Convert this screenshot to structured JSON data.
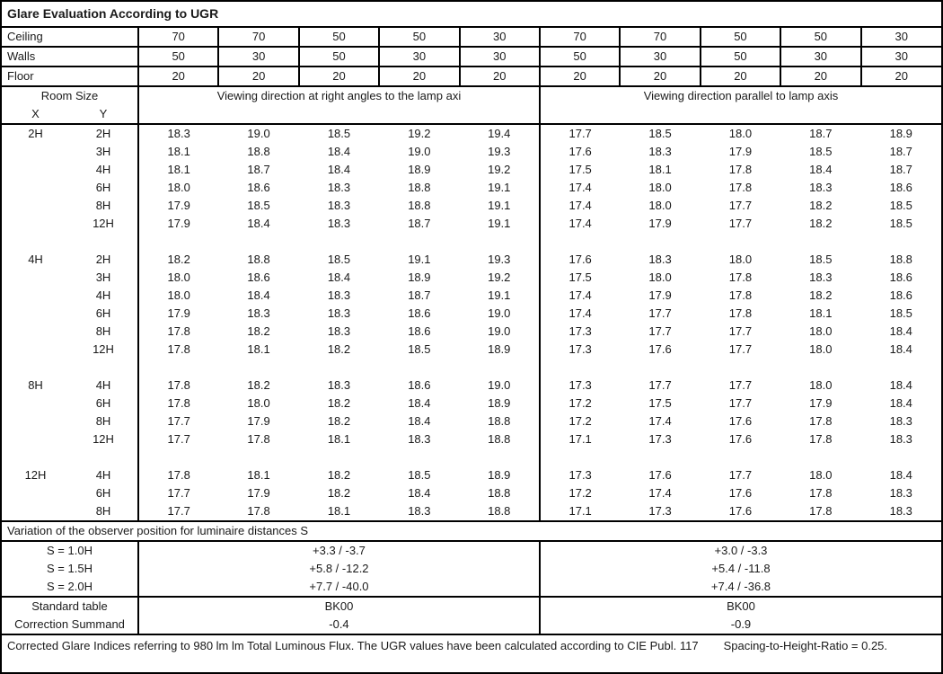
{
  "title": "Glare Evaluation According to UGR",
  "reflectances": {
    "rows": [
      {
        "label": "Ceiling",
        "values": [
          "70",
          "70",
          "50",
          "50",
          "30",
          "70",
          "70",
          "50",
          "50",
          "30"
        ]
      },
      {
        "label": "Walls",
        "values": [
          "50",
          "30",
          "50",
          "30",
          "30",
          "50",
          "30",
          "50",
          "30",
          "30"
        ]
      },
      {
        "label": "Floor",
        "values": [
          "20",
          "20",
          "20",
          "20",
          "20",
          "20",
          "20",
          "20",
          "20",
          "20"
        ]
      }
    ]
  },
  "header": {
    "room_size": "Room Size",
    "x": "X",
    "y": "Y",
    "left_section": "Viewing direction at right angles to the lamp axi",
    "right_section": "Viewing direction parallel to lamp axis"
  },
  "ugr_groups": [
    {
      "x": "2H",
      "rows": [
        {
          "y": "2H",
          "values": [
            "18.3",
            "19.0",
            "18.5",
            "19.2",
            "19.4",
            "17.7",
            "18.5",
            "18.0",
            "18.7",
            "18.9"
          ]
        },
        {
          "y": "3H",
          "values": [
            "18.1",
            "18.8",
            "18.4",
            "19.0",
            "19.3",
            "17.6",
            "18.3",
            "17.9",
            "18.5",
            "18.7"
          ]
        },
        {
          "y": "4H",
          "values": [
            "18.1",
            "18.7",
            "18.4",
            "18.9",
            "19.2",
            "17.5",
            "18.1",
            "17.8",
            "18.4",
            "18.7"
          ]
        },
        {
          "y": "6H",
          "values": [
            "18.0",
            "18.6",
            "18.3",
            "18.8",
            "19.1",
            "17.4",
            "18.0",
            "17.8",
            "18.3",
            "18.6"
          ]
        },
        {
          "y": "8H",
          "values": [
            "17.9",
            "18.5",
            "18.3",
            "18.8",
            "19.1",
            "17.4",
            "18.0",
            "17.7",
            "18.2",
            "18.5"
          ]
        },
        {
          "y": "12H",
          "values": [
            "17.9",
            "18.4",
            "18.3",
            "18.7",
            "19.1",
            "17.4",
            "17.9",
            "17.7",
            "18.2",
            "18.5"
          ]
        }
      ]
    },
    {
      "x": "4H",
      "rows": [
        {
          "y": "2H",
          "values": [
            "18.2",
            "18.8",
            "18.5",
            "19.1",
            "19.3",
            "17.6",
            "18.3",
            "18.0",
            "18.5",
            "18.8"
          ]
        },
        {
          "y": "3H",
          "values": [
            "18.0",
            "18.6",
            "18.4",
            "18.9",
            "19.2",
            "17.5",
            "18.0",
            "17.8",
            "18.3",
            "18.6"
          ]
        },
        {
          "y": "4H",
          "values": [
            "18.0",
            "18.4",
            "18.3",
            "18.7",
            "19.1",
            "17.4",
            "17.9",
            "17.8",
            "18.2",
            "18.6"
          ]
        },
        {
          "y": "6H",
          "values": [
            "17.9",
            "18.3",
            "18.3",
            "18.6",
            "19.0",
            "17.4",
            "17.7",
            "17.8",
            "18.1",
            "18.5"
          ]
        },
        {
          "y": "8H",
          "values": [
            "17.8",
            "18.2",
            "18.3",
            "18.6",
            "19.0",
            "17.3",
            "17.7",
            "17.7",
            "18.0",
            "18.4"
          ]
        },
        {
          "y": "12H",
          "values": [
            "17.8",
            "18.1",
            "18.2",
            "18.5",
            "18.9",
            "17.3",
            "17.6",
            "17.7",
            "18.0",
            "18.4"
          ]
        }
      ]
    },
    {
      "x": "8H",
      "rows": [
        {
          "y": "4H",
          "values": [
            "17.8",
            "18.2",
            "18.3",
            "18.6",
            "19.0",
            "17.3",
            "17.7",
            "17.7",
            "18.0",
            "18.4"
          ]
        },
        {
          "y": "6H",
          "values": [
            "17.8",
            "18.0",
            "18.2",
            "18.4",
            "18.9",
            "17.2",
            "17.5",
            "17.7",
            "17.9",
            "18.4"
          ]
        },
        {
          "y": "8H",
          "values": [
            "17.7",
            "17.9",
            "18.2",
            "18.4",
            "18.8",
            "17.2",
            "17.4",
            "17.6",
            "17.8",
            "18.3"
          ]
        },
        {
          "y": "12H",
          "values": [
            "17.7",
            "17.8",
            "18.1",
            "18.3",
            "18.8",
            "17.1",
            "17.3",
            "17.6",
            "17.8",
            "18.3"
          ]
        }
      ]
    },
    {
      "x": "12H",
      "rows": [
        {
          "y": "4H",
          "values": [
            "17.8",
            "18.1",
            "18.2",
            "18.5",
            "18.9",
            "17.3",
            "17.6",
            "17.7",
            "18.0",
            "18.4"
          ]
        },
        {
          "y": "6H",
          "values": [
            "17.7",
            "17.9",
            "18.2",
            "18.4",
            "18.8",
            "17.2",
            "17.4",
            "17.6",
            "17.8",
            "18.3"
          ]
        },
        {
          "y": "8H",
          "values": [
            "17.7",
            "17.8",
            "18.1",
            "18.3",
            "18.8",
            "17.1",
            "17.3",
            "17.6",
            "17.8",
            "18.3"
          ]
        }
      ]
    }
  ],
  "variation": {
    "header": "Variation of the observer position for luminaire distances S",
    "rows": [
      {
        "label": "S = 1.0H",
        "left": "+3.3 / -3.7",
        "right": "+3.0 / -3.3"
      },
      {
        "label": "S = 1.5H",
        "left": "+5.8 / -12.2",
        "right": "+5.4 / -11.8"
      },
      {
        "label": "S = 2.0H",
        "left": "+7.7 / -40.0",
        "right": "+7.4 / -36.8"
      }
    ]
  },
  "summary": {
    "rows": [
      {
        "label": "Standard table",
        "left": "BK00",
        "right": "BK00"
      },
      {
        "label": "Correction Summand",
        "left": "-0.4",
        "right": "-0.9"
      }
    ]
  },
  "footer": {
    "flux_note": "Corrected Glare Indices referring to 980 lm lm Total Luminous Flux. The UGR values have been calculated according to CIE Publ. 117",
    "shr_note": "Spacing-to-Height-Ratio = 0.25."
  }
}
